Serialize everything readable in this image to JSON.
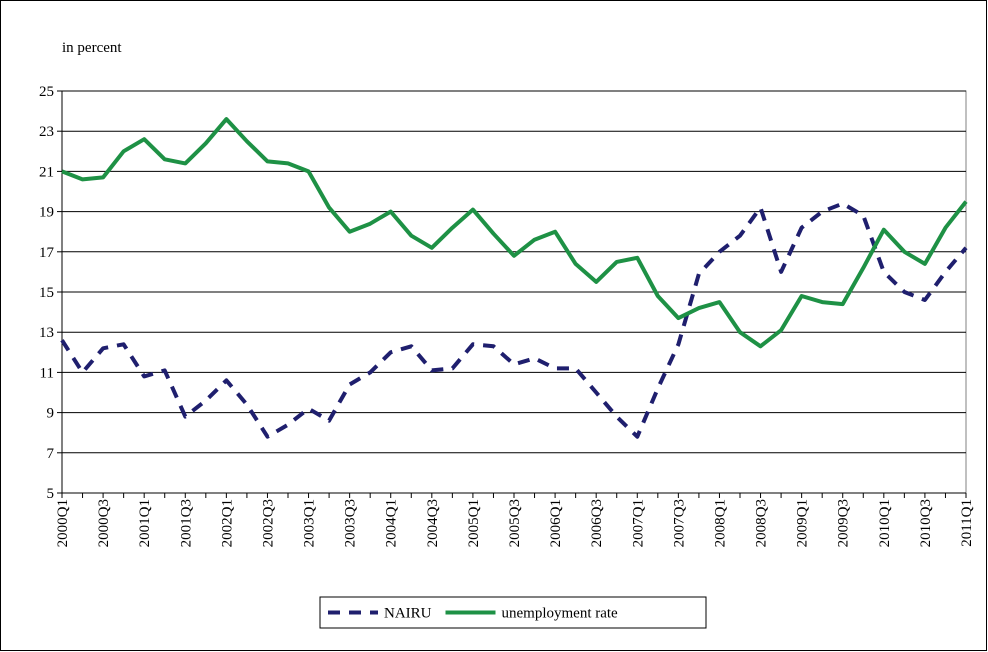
{
  "chart_data": {
    "type": "line",
    "y_label": "in percent",
    "categories": [
      "2000Q1",
      null,
      "2000Q3",
      null,
      "2001Q1",
      null,
      "2001Q3",
      null,
      "2002Q1",
      null,
      "2002Q3",
      null,
      "2003Q1",
      null,
      "2003Q3",
      null,
      "2004Q1",
      null,
      "2004Q3",
      null,
      "2005Q1",
      null,
      "2005Q3",
      null,
      "2006Q1",
      null,
      "2006Q3",
      null,
      "2007Q1",
      null,
      "2007Q3",
      null,
      "2008Q1",
      null,
      "2008Q3",
      null,
      "2009Q1",
      null,
      "2009Q3",
      null,
      "2010Q1",
      null,
      "2010Q3",
      null,
      "2011Q1"
    ],
    "series": [
      {
        "name": "NAIRU",
        "color": "#1f1f6e",
        "dash": true,
        "values": [
          12.6,
          11.0,
          12.2,
          12.4,
          10.8,
          11.1,
          8.8,
          9.6,
          10.6,
          9.4,
          7.8,
          8.4,
          9.2,
          8.6,
          10.4,
          11.0,
          12.0,
          12.3,
          11.1,
          11.2,
          12.4,
          12.3,
          11.4,
          11.7,
          11.2,
          11.2,
          10.0,
          8.8,
          7.8,
          10.2,
          12.4,
          15.9,
          17.0,
          17.8,
          19.2,
          16.0,
          18.2,
          19.0,
          19.4,
          18.8,
          16.0,
          15.0,
          14.6,
          16.0,
          17.2
        ]
      },
      {
        "name": "unemployment rate",
        "color": "#1e9145",
        "dash": false,
        "values": [
          21.0,
          20.6,
          20.7,
          22.0,
          22.6,
          21.6,
          21.4,
          22.4,
          23.6,
          22.5,
          21.5,
          21.4,
          21.0,
          19.2,
          18.0,
          18.4,
          19.0,
          17.8,
          17.2,
          18.2,
          19.1,
          17.9,
          16.8,
          17.6,
          18.0,
          16.4,
          15.5,
          16.5,
          16.7,
          14.8,
          13.7,
          14.2,
          14.5,
          13.0,
          12.3,
          13.1,
          14.8,
          14.5,
          14.4,
          16.2,
          18.1,
          17.0,
          16.4,
          18.2,
          19.5
        ]
      }
    ],
    "ylim": [
      5,
      25
    ],
    "yticks": [
      5,
      7,
      9,
      11,
      13,
      15,
      17,
      19,
      21,
      23,
      25
    ],
    "grid": true,
    "legend": "bottom"
  }
}
